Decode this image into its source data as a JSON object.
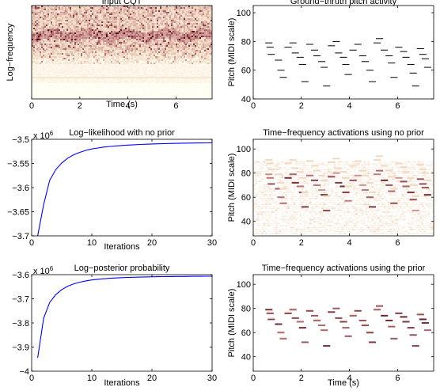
{
  "chart_data": [
    {
      "type": "heatmap",
      "title": "Input CQT",
      "xlabel": "Time (s)",
      "ylabel": "Log−frequency",
      "xlim": [
        0,
        7.5
      ],
      "xticks": [
        "0",
        "2",
        "4",
        "6"
      ],
      "xtick_values": [
        0,
        2,
        4,
        6
      ],
      "yticks": [],
      "colormap": [
        "#fffff5",
        "#f3dcc4",
        "#c98a8a",
        "#5a0f22"
      ]
    },
    {
      "type": "scatter",
      "title": "Ground−thruth pitch activity",
      "xlabel": "",
      "ylabel": "Pitch (MIDI scale)",
      "xlim": [
        0,
        7.5
      ],
      "ylim": [
        40,
        105
      ],
      "xticks": [
        "0",
        "2",
        "4",
        "6"
      ],
      "xtick_values": [
        0,
        2,
        4,
        6
      ],
      "yticks": [
        "40",
        "60",
        "80",
        "100"
      ],
      "ytick_values": [
        40,
        60,
        80,
        100
      ],
      "notes": [
        [
          0.5,
          0.8,
          79
        ],
        [
          0.55,
          0.85,
          76
        ],
        [
          0.6,
          0.9,
          71
        ],
        [
          0.9,
          1.2,
          67
        ],
        [
          1.0,
          1.3,
          60
        ],
        [
          1.1,
          1.4,
          55
        ],
        [
          1.3,
          1.6,
          76
        ],
        [
          1.5,
          1.8,
          79
        ],
        [
          1.6,
          1.9,
          72
        ],
        [
          1.8,
          2.1,
          69
        ],
        [
          1.9,
          2.2,
          64
        ],
        [
          2.0,
          2.3,
          52
        ],
        [
          2.2,
          2.5,
          78
        ],
        [
          2.4,
          2.7,
          74
        ],
        [
          2.5,
          2.8,
          70
        ],
        [
          2.7,
          3.0,
          66
        ],
        [
          2.8,
          3.1,
          62
        ],
        [
          2.9,
          3.2,
          49
        ],
        [
          3.1,
          3.4,
          77
        ],
        [
          3.3,
          3.6,
          80
        ],
        [
          3.4,
          3.7,
          72
        ],
        [
          3.6,
          3.9,
          69
        ],
        [
          3.7,
          4.0,
          64
        ],
        [
          3.8,
          4.1,
          57
        ],
        [
          4.0,
          4.3,
          74
        ],
        [
          4.2,
          4.5,
          78
        ],
        [
          4.4,
          4.7,
          70
        ],
        [
          4.5,
          4.8,
          66
        ],
        [
          4.7,
          5.0,
          60
        ],
        [
          4.8,
          5.1,
          52
        ],
        [
          5.0,
          5.3,
          79
        ],
        [
          5.1,
          5.4,
          82
        ],
        [
          5.3,
          5.6,
          74
        ],
        [
          5.5,
          5.8,
          70
        ],
        [
          5.6,
          5.9,
          65
        ],
        [
          5.7,
          6.0,
          55
        ],
        [
          5.9,
          6.2,
          76
        ],
        [
          6.1,
          6.4,
          73
        ],
        [
          6.2,
          6.5,
          69
        ],
        [
          6.4,
          6.7,
          64
        ],
        [
          6.5,
          6.8,
          58
        ],
        [
          6.6,
          6.9,
          49
        ],
        [
          6.8,
          7.1,
          75
        ],
        [
          6.9,
          7.2,
          71
        ],
        [
          7.0,
          7.3,
          68
        ],
        [
          7.1,
          7.4,
          62
        ]
      ]
    },
    {
      "type": "line",
      "title": "Log−likelihood with no prior",
      "xlabel": "Iterations",
      "ylabel": "",
      "exponent": "6",
      "xlim": [
        0,
        30
      ],
      "ylim": [
        -3.7,
        -3.5
      ],
      "xticks": [
        "0",
        "10",
        "20",
        "30"
      ],
      "xtick_values": [
        0,
        10,
        20,
        30
      ],
      "yticks": [
        "−3.5",
        "−3.55",
        "−3.6",
        "−3.65",
        "−3.7"
      ],
      "ytick_values": [
        -3.5,
        -3.55,
        -3.6,
        -3.65,
        -3.7
      ],
      "color": "#0000ff",
      "x": [
        1,
        2,
        3,
        4,
        5,
        6,
        7,
        8,
        9,
        10,
        11,
        12,
        13,
        14,
        15,
        16,
        17,
        18,
        19,
        20,
        21,
        22,
        23,
        24,
        25,
        26,
        27,
        28,
        29,
        30
      ],
      "y": [
        -3.7,
        -3.635,
        -3.585,
        -3.563,
        -3.549,
        -3.539,
        -3.532,
        -3.527,
        -3.523,
        -3.52,
        -3.518,
        -3.516,
        -3.5148,
        -3.5137,
        -3.5128,
        -3.512,
        -3.5113,
        -3.5107,
        -3.5102,
        -3.5097,
        -3.5093,
        -3.509,
        -3.5087,
        -3.5084,
        -3.5081,
        -3.5079,
        -3.5077,
        -3.5075,
        -3.5073,
        -3.5072
      ]
    },
    {
      "type": "heatmap",
      "title": "Time−frequency activations using no prior",
      "xlabel": "",
      "ylabel": "Pitch (MIDI scale)",
      "xlim": [
        0,
        7.5
      ],
      "ylim": [
        28,
        108
      ],
      "xticks": [
        "0",
        "2",
        "4",
        "6"
      ],
      "xtick_values": [
        0,
        2,
        4,
        6
      ],
      "yticks": [
        "40",
        "60",
        "80",
        "100"
      ],
      "ytick_values": [
        40,
        60,
        80,
        100
      ],
      "colormap": [
        "#ffffff",
        "#f3dcc4",
        "#c98a8a",
        "#5a0f22"
      ]
    },
    {
      "type": "line",
      "title": "Log−posterior probability",
      "xlabel": "Iterations",
      "ylabel": "",
      "exponent": "6",
      "xlim": [
        0,
        30
      ],
      "ylim": [
        -4.0,
        -3.6
      ],
      "xticks": [
        "0",
        "10",
        "20",
        "30"
      ],
      "xtick_values": [
        0,
        10,
        20,
        30
      ],
      "yticks": [
        "−3.6",
        "−3.7",
        "−3.8",
        "−3.9",
        "−4"
      ],
      "ytick_values": [
        -3.6,
        -3.7,
        -3.8,
        -3.9,
        -4.0
      ],
      "color": "#0000ff",
      "x": [
        1,
        2,
        3,
        4,
        5,
        6,
        7,
        8,
        9,
        10,
        11,
        12,
        13,
        14,
        15,
        16,
        17,
        18,
        19,
        20,
        21,
        22,
        23,
        24,
        25,
        26,
        27,
        28,
        29,
        30
      ],
      "y": [
        -3.945,
        -3.78,
        -3.715,
        -3.683,
        -3.662,
        -3.648,
        -3.638,
        -3.631,
        -3.626,
        -3.622,
        -3.619,
        -3.617,
        -3.615,
        -3.6138,
        -3.6126,
        -3.6116,
        -3.6108,
        -3.6101,
        -3.6095,
        -3.609,
        -3.6086,
        -3.6082,
        -3.6079,
        -3.6076,
        -3.6074,
        -3.6072,
        -3.607,
        -3.6068,
        -3.6067,
        -3.6066
      ]
    },
    {
      "type": "heatmap",
      "title": "Time−frequency activations using the prior",
      "xlabel": "Time (s)",
      "ylabel": "Pitch (MIDI scale)",
      "xlim": [
        0,
        7.5
      ],
      "ylim": [
        28,
        108
      ],
      "xticks": [
        "0",
        "2",
        "4",
        "6"
      ],
      "xtick_values": [
        0,
        2,
        4,
        6
      ],
      "yticks": [
        "40",
        "60",
        "80",
        "100"
      ],
      "ytick_values": [
        40,
        60,
        80,
        100
      ],
      "colormap": [
        "#ffffff",
        "#f3dcc4",
        "#c98a8a",
        "#5a0f22"
      ]
    }
  ]
}
